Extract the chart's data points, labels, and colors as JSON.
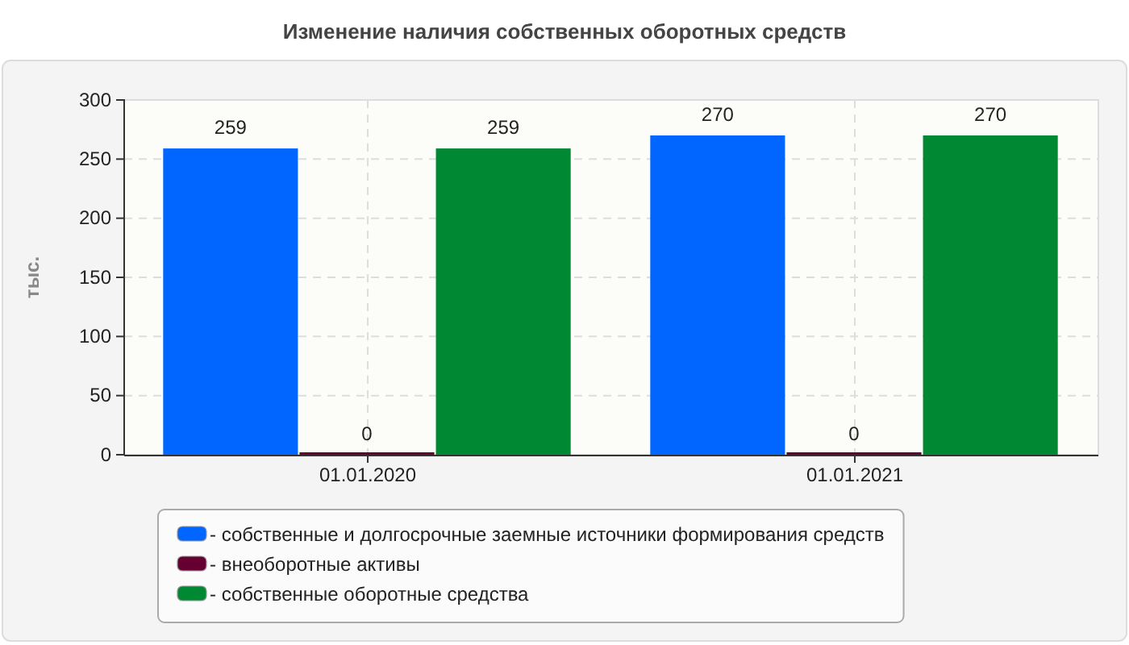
{
  "chart_data": {
    "type": "bar",
    "title": "Изменение наличия собственных оборотных средств",
    "ylabel": "тыс.",
    "categories": [
      "01.01.2020",
      "01.01.2021"
    ],
    "series": [
      {
        "name": "- собственные и долгосрочные заемные источники формирования средств",
        "color": "#0066ff",
        "values": [
          259,
          270
        ]
      },
      {
        "name": "- внеоборотные активы",
        "color": "#660033",
        "values": [
          0,
          0
        ]
      },
      {
        "name": "- собственные оборотные средства",
        "color": "#008833",
        "values": [
          259,
          270
        ]
      }
    ],
    "ylim": [
      0,
      300
    ],
    "yticks": [
      0,
      50,
      100,
      150,
      200,
      250,
      300
    ],
    "grid": true,
    "legend": "bottom",
    "data_labels": true
  }
}
